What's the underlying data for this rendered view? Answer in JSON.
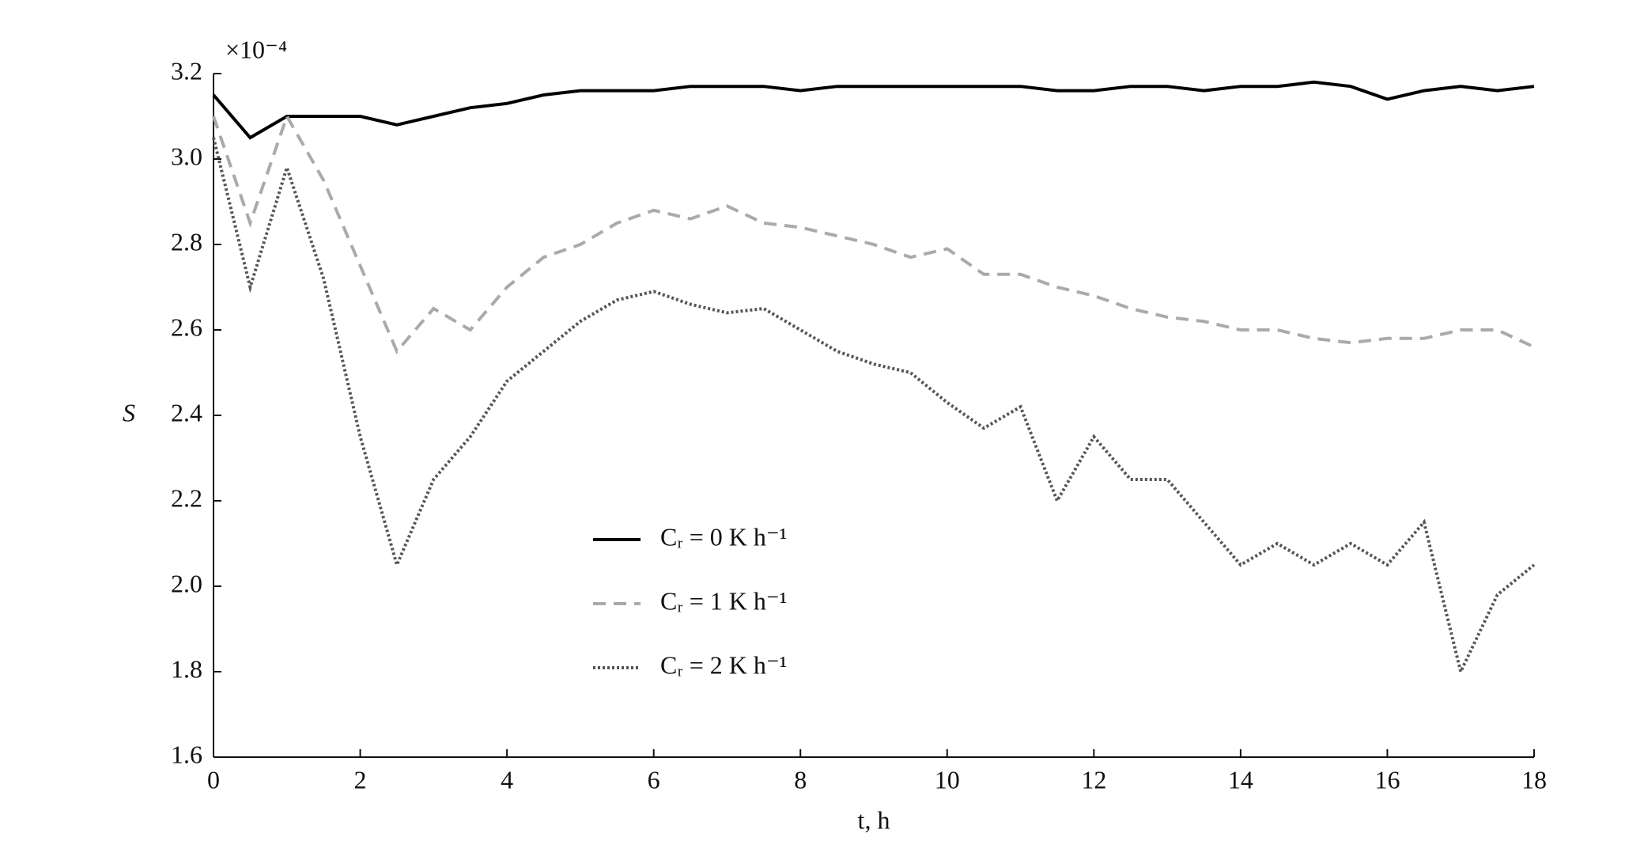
{
  "chart_data": {
    "type": "line",
    "x_label": "t, h",
    "y_label": "S",
    "y_multiplier": "×10⁻⁴",
    "x": [
      0,
      0.5,
      1,
      1.5,
      2,
      2.5,
      3,
      3.5,
      4,
      4.5,
      5,
      5.5,
      6,
      6.5,
      7,
      7.5,
      8,
      8.5,
      9,
      9.5,
      10,
      10.5,
      11,
      11.5,
      12,
      12.5,
      13,
      13.5,
      14,
      14.5,
      15,
      15.5,
      16,
      16.5,
      17,
      17.5,
      18
    ],
    "series": [
      {
        "name": "Cᵣ = 0 K h⁻¹",
        "color": "#000000",
        "dash": "solid",
        "values": [
          3.15,
          3.05,
          3.1,
          3.1,
          3.1,
          3.08,
          3.1,
          3.12,
          3.13,
          3.15,
          3.16,
          3.16,
          3.16,
          3.17,
          3.17,
          3.17,
          3.16,
          3.17,
          3.17,
          3.17,
          3.17,
          3.17,
          3.17,
          3.16,
          3.16,
          3.17,
          3.17,
          3.16,
          3.17,
          3.17,
          3.18,
          3.17,
          3.14,
          3.16,
          3.17,
          3.16,
          3.17
        ]
      },
      {
        "name": "Cᵣ = 1 K h⁻¹",
        "color": "#aaaaaa",
        "dash": "dashed",
        "values": [
          3.1,
          2.85,
          3.1,
          2.95,
          2.75,
          2.55,
          2.65,
          2.6,
          2.7,
          2.77,
          2.8,
          2.85,
          2.88,
          2.86,
          2.89,
          2.85,
          2.84,
          2.82,
          2.8,
          2.77,
          2.79,
          2.73,
          2.73,
          2.7,
          2.68,
          2.65,
          2.63,
          2.62,
          2.6,
          2.6,
          2.58,
          2.57,
          2.58,
          2.58,
          2.6,
          2.6,
          2.56
        ]
      },
      {
        "name": "Cᵣ = 2 K h⁻¹",
        "color": "#555555",
        "dash": "dotted",
        "values": [
          3.05,
          2.7,
          2.98,
          2.72,
          2.35,
          2.05,
          2.25,
          2.35,
          2.48,
          2.55,
          2.62,
          2.67,
          2.69,
          2.66,
          2.64,
          2.65,
          2.6,
          2.55,
          2.52,
          2.5,
          2.43,
          2.37,
          2.42,
          2.2,
          2.35,
          2.25,
          2.25,
          2.15,
          2.05,
          2.1,
          2.05,
          2.1,
          2.05,
          2.15,
          1.8,
          1.98,
          2.05
        ]
      }
    ],
    "xlim": [
      0,
      18
    ],
    "xticks": [
      0,
      2,
      4,
      6,
      8,
      10,
      12,
      14,
      16,
      18
    ],
    "ylim": [
      1.6,
      3.2
    ],
    "yticks": [
      1.6,
      1.8,
      {
        "value": 2,
        "label": "2.0"
      },
      2.2,
      2.4,
      2.6,
      2.8,
      {
        "value": 3,
        "label": "3.0"
      },
      3.2
    ],
    "grid": false
  }
}
